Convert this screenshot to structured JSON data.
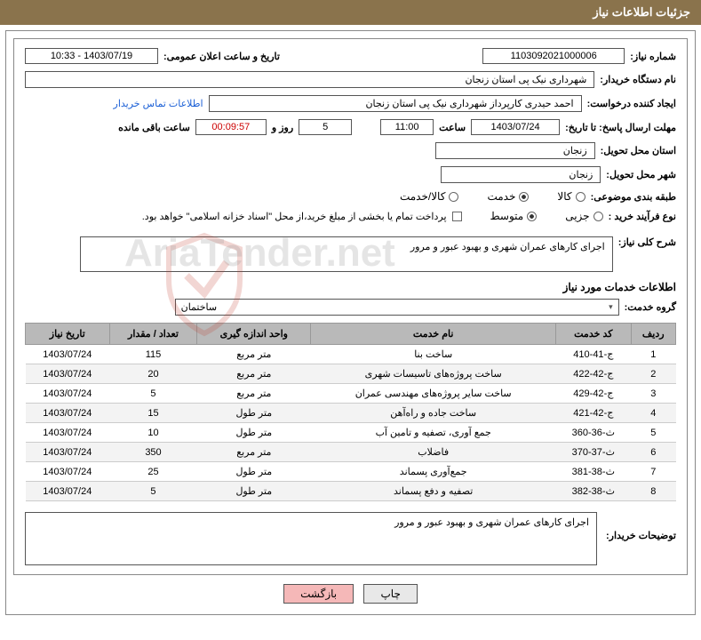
{
  "header": {
    "title": "جزئیات اطلاعات نیاز"
  },
  "fields": {
    "need_number_label": "شماره نیاز:",
    "need_number": "1103092021000006",
    "announce_label": "تاریخ و ساعت اعلان عمومی:",
    "announce_value": "1403/07/19 - 10:33",
    "buyer_org_label": "نام دستگاه خریدار:",
    "buyer_org": "شهرداری نیک پی استان زنجان",
    "requester_label": "ایجاد کننده درخواست:",
    "requester": "احمد حیدری کارپرداز شهرداری نیک پی استان زنجان",
    "contact_link": "اطلاعات تماس خریدار",
    "deadline_label": "مهلت ارسال پاسخ: تا تاریخ:",
    "deadline_date": "1403/07/24",
    "time_label": "ساعت",
    "deadline_time": "11:00",
    "days_field": "5",
    "days_suffix": "روز و",
    "countdown": "00:09:57",
    "remaining_label": "ساعت باقی مانده",
    "province_label": "استان محل تحویل:",
    "province": "زنجان",
    "city_label": "شهر محل تحویل:",
    "city": "زنجان",
    "subject_class_label": "طبقه بندی موضوعی:",
    "radio_goods": "کالا",
    "radio_service": "خدمت",
    "radio_goods_service": "کالا/خدمت",
    "purchase_type_label": "نوع فرآیند خرید :",
    "radio_partial": "جزیی",
    "radio_medium": "متوسط",
    "payment_note": "پرداخت تمام یا بخشی از مبلغ خرید،از محل \"اسناد خزانه اسلامی\" خواهد بود.",
    "general_desc_label": "شرح کلی نیاز:",
    "general_desc": "اجرای کارهای عمران شهری و بهبود عبور و مرور",
    "services_header": "اطلاعات خدمات مورد نیاز",
    "service_group_label": "گروه خدمت:",
    "service_group": "ساختمان",
    "buyer_explain_label": "توضیحات خریدار:",
    "buyer_explain": "اجرای کارهای عمران شهری و بهبود عبور و مرور"
  },
  "table": {
    "columns": [
      "ردیف",
      "کد خدمت",
      "نام خدمت",
      "واحد اندازه گیری",
      "تعداد / مقدار",
      "تاریخ نیاز"
    ],
    "rows": [
      [
        "1",
        "ج-41-410",
        "ساخت بنا",
        "متر مربع",
        "115",
        "1403/07/24"
      ],
      [
        "2",
        "ج-42-422",
        "ساخت پروژه‌های تاسیسات شهری",
        "متر مربع",
        "20",
        "1403/07/24"
      ],
      [
        "3",
        "ج-42-429",
        "ساخت سایر پروژه‌های مهندسی عمران",
        "متر مربع",
        "5",
        "1403/07/24"
      ],
      [
        "4",
        "ج-42-421",
        "ساخت جاده و راه‌آهن",
        "متر طول",
        "15",
        "1403/07/24"
      ],
      [
        "5",
        "ث-36-360",
        "جمع آوری، تصفیه و تامین آب",
        "متر طول",
        "10",
        "1403/07/24"
      ],
      [
        "6",
        "ث-37-370",
        "فاضلاب",
        "متر مربع",
        "350",
        "1403/07/24"
      ],
      [
        "7",
        "ث-38-381",
        "جمع‌آوری پسماند",
        "متر طول",
        "25",
        "1403/07/24"
      ],
      [
        "8",
        "ث-38-382",
        "تصفیه و دفع پسماند",
        "متر طول",
        "5",
        "1403/07/24"
      ]
    ]
  },
  "buttons": {
    "print": "چاپ",
    "back": "بازگشت"
  },
  "watermark": "AriaTender.net"
}
